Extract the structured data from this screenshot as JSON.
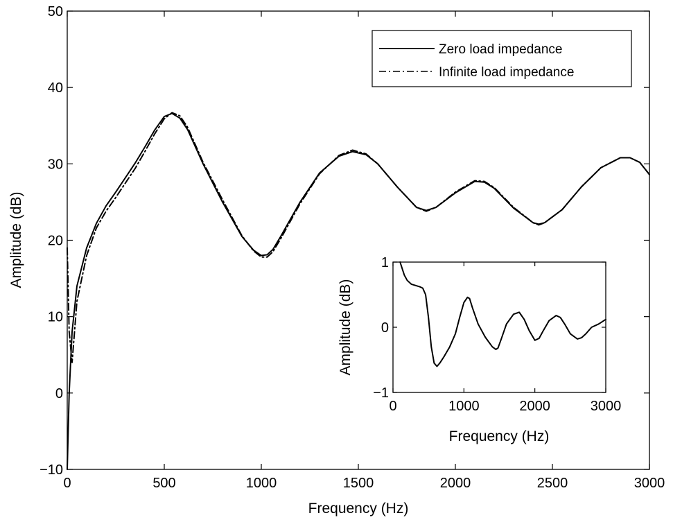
{
  "chart_data": [
    {
      "type": "line",
      "xlabel": "Frequency (Hz)",
      "ylabel": "Amplitude (dB)",
      "xlim": [
        0,
        3000
      ],
      "ylim": [
        -10,
        50
      ],
      "xticks": [
        0,
        500,
        1000,
        1500,
        2000,
        2500,
        3000
      ],
      "yticks": [
        -10,
        0,
        10,
        20,
        30,
        40,
        50
      ],
      "xtick_labels": [
        "0",
        "500",
        "1000",
        "1500",
        "2000",
        "2500",
        "3000"
      ],
      "ytick_labels": [
        "−10",
        "0",
        "10",
        "20",
        "30",
        "40",
        "50"
      ],
      "grid": false,
      "legend_position": "top-right",
      "series": [
        {
          "name": "Zero load impedance",
          "style": "solid",
          "color": "#000000",
          "x": [
            0,
            10,
            25,
            50,
            100,
            150,
            200,
            250,
            300,
            350,
            400,
            450,
            500,
            540,
            580,
            620,
            700,
            800,
            900,
            960,
            1000,
            1030,
            1060,
            1100,
            1200,
            1300,
            1400,
            1470,
            1540,
            1600,
            1700,
            1800,
            1850,
            1900,
            2000,
            2100,
            2150,
            2200,
            2300,
            2400,
            2430,
            2460,
            2550,
            2650,
            2750,
            2850,
            2900,
            2950,
            3000
          ],
          "y": [
            -10,
            0,
            8,
            14,
            19,
            22.2,
            24.5,
            26.3,
            28.2,
            30.1,
            32.2,
            34.4,
            36.2,
            36.6,
            36.0,
            34.5,
            30.0,
            25.0,
            20.5,
            18.7,
            18.0,
            18.1,
            18.8,
            20.5,
            25.0,
            28.8,
            31.0,
            31.6,
            31.2,
            30.0,
            27.0,
            24.3,
            23.9,
            24.3,
            26.2,
            27.7,
            27.6,
            26.8,
            24.2,
            22.3,
            22.1,
            22.3,
            24.0,
            27.0,
            29.5,
            30.8,
            30.8,
            30.2,
            28.6
          ]
        },
        {
          "name": "Infinite load impedance",
          "style": "dash-dot",
          "color": "#000000",
          "x": [
            0,
            10,
            25,
            50,
            100,
            150,
            200,
            250,
            300,
            350,
            400,
            450,
            500,
            540,
            580,
            620,
            700,
            800,
            900,
            960,
            1000,
            1030,
            1060,
            1100,
            1200,
            1300,
            1400,
            1470,
            1540,
            1600,
            1700,
            1800,
            1850,
            1900,
            2000,
            2100,
            2150,
            2200,
            2300,
            2400,
            2430,
            2460,
            2550,
            2650,
            2750,
            2850,
            2900,
            2950,
            3000
          ],
          "y": [
            19,
            8,
            4,
            12,
            18,
            21.6,
            23.8,
            25.6,
            27.5,
            29.4,
            31.6,
            33.9,
            35.9,
            36.7,
            36.3,
            34.8,
            30.2,
            25.3,
            20.6,
            18.6,
            17.8,
            17.8,
            18.5,
            20.2,
            24.8,
            28.7,
            31.1,
            31.8,
            31.3,
            30.0,
            27.0,
            24.3,
            23.8,
            24.3,
            26.3,
            27.8,
            27.7,
            26.9,
            24.3,
            22.3,
            22.0,
            22.3,
            24.0,
            27.0,
            29.5,
            30.8,
            30.8,
            30.2,
            28.6
          ]
        }
      ]
    },
    {
      "type": "line",
      "xlabel": "Frequency (Hz)",
      "ylabel": "Amplitude (dB)",
      "xlim": [
        0,
        3000
      ],
      "ylim": [
        -1,
        1
      ],
      "xticks": [
        0,
        1000,
        2000,
        3000
      ],
      "yticks": [
        -1,
        0,
        1
      ],
      "xtick_labels": [
        "0",
        "1000",
        "2000",
        "3000"
      ],
      "ytick_labels": [
        "−1",
        "0",
        "1"
      ],
      "grid": false,
      "series": [
        {
          "style": "solid",
          "color": "#000000",
          "x": [
            100,
            130,
            160,
            200,
            260,
            320,
            380,
            420,
            460,
            500,
            540,
            580,
            620,
            660,
            720,
            800,
            880,
            940,
            1000,
            1050,
            1080,
            1120,
            1200,
            1300,
            1400,
            1450,
            1480,
            1520,
            1600,
            1700,
            1780,
            1850,
            1920,
            2000,
            2060,
            2120,
            2200,
            2300,
            2360,
            2420,
            2500,
            2600,
            2660,
            2720,
            2800,
            2900,
            3000
          ],
          "y": [
            1.0,
            0.9,
            0.8,
            0.72,
            0.66,
            0.64,
            0.62,
            0.6,
            0.5,
            0.15,
            -0.3,
            -0.55,
            -0.6,
            -0.55,
            -0.45,
            -0.3,
            -0.1,
            0.15,
            0.38,
            0.46,
            0.44,
            0.3,
            0.05,
            -0.15,
            -0.3,
            -0.34,
            -0.32,
            -0.2,
            0.05,
            0.2,
            0.23,
            0.12,
            -0.05,
            -0.2,
            -0.17,
            -0.05,
            0.1,
            0.18,
            0.15,
            0.05,
            -0.1,
            -0.18,
            -0.16,
            -0.1,
            0.0,
            0.05,
            0.12
          ]
        }
      ]
    }
  ]
}
